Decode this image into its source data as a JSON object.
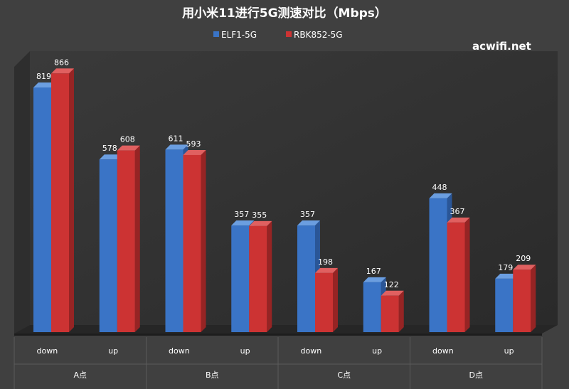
{
  "chart_data": {
    "type": "bar",
    "title": "用小米11进行5G测速对比（Mbps）",
    "watermark": "acwifi.net",
    "groups": [
      "A点",
      "B点",
      "C点",
      "D点"
    ],
    "categories": [
      "down",
      "up",
      "down",
      "up",
      "down",
      "up",
      "down",
      "up"
    ],
    "series": [
      {
        "name": "ELF1-5G",
        "color": "#3a74c6",
        "values": [
          819,
          578,
          611,
          357,
          357,
          167,
          448,
          179
        ]
      },
      {
        "name": "RBK852-5G",
        "color": "#cc3333",
        "values": [
          866,
          608,
          593,
          355,
          198,
          122,
          367,
          209
        ]
      }
    ],
    "ylim": [
      0,
      900
    ],
    "grid": false,
    "legend": "top-center",
    "data_labels": true
  }
}
